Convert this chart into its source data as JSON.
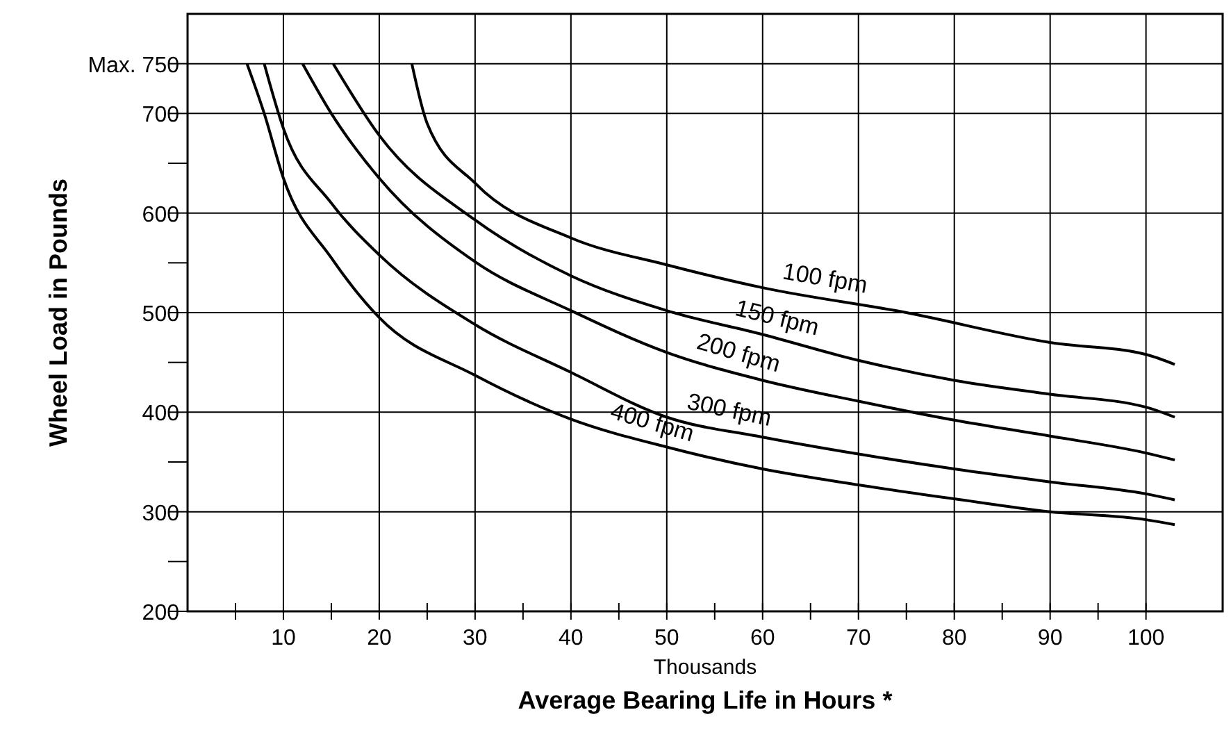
{
  "chart_data": {
    "type": "line",
    "xlabel": "Average Bearing Life in Hours *",
    "ylabel": "Wheel Load in Pounds",
    "annotations": [
      "Thousands"
    ],
    "xlim": [
      0,
      108
    ],
    "ylim": [
      200,
      800
    ],
    "xticks": [
      {
        "value": 5,
        "label": null
      },
      10,
      {
        "value": 15,
        "label": null
      },
      20,
      {
        "value": 25,
        "label": null
      },
      30,
      {
        "value": 35,
        "label": null
      },
      40,
      {
        "value": 45,
        "label": null
      },
      50,
      {
        "value": 55,
        "label": null
      },
      60,
      {
        "value": 65,
        "label": null
      },
      70,
      {
        "value": 75,
        "label": null
      },
      80,
      {
        "value": 85,
        "label": null
      },
      90,
      {
        "value": 95,
        "label": null
      },
      100
    ],
    "yticks": [
      200,
      {
        "value": 250,
        "label": null
      },
      300,
      {
        "value": 350,
        "label": null
      },
      400,
      {
        "value": 450,
        "label": null
      },
      500,
      {
        "value": 550,
        "label": null
      },
      600,
      {
        "value": 650,
        "label": null
      },
      700,
      {
        "value": 750,
        "label": "Max. 750"
      }
    ],
    "grid": true,
    "marker": "none",
    "line_style": "solid",
    "series": [
      {
        "name": "100 fpm",
        "color": "#000000",
        "x": [
          23.4,
          25,
          30,
          40,
          50,
          60,
          75,
          90,
          100,
          103
        ],
        "values": [
          750,
          690,
          630,
          575,
          548,
          525,
          500,
          470,
          458,
          448
        ]
      },
      {
        "name": "150 fpm",
        "color": "#000000",
        "x": [
          15.2,
          20,
          30,
          40,
          50,
          60,
          70,
          80,
          90,
          100,
          103
        ],
        "values": [
          750,
          678,
          593,
          537,
          502,
          478,
          452,
          432,
          418,
          405,
          395
        ]
      },
      {
        "name": "200 fpm",
        "color": "#000000",
        "x": [
          12,
          15,
          20,
          30,
          40,
          50,
          60,
          70,
          80,
          90,
          100,
          103
        ],
        "values": [
          750,
          700,
          635,
          551,
          502,
          460,
          432,
          411,
          392,
          376,
          359,
          352
        ]
      },
      {
        "name": "300 fpm",
        "color": "#000000",
        "x": [
          8,
          10,
          15,
          20,
          30,
          40,
          50,
          60,
          70,
          80,
          90,
          100,
          103
        ],
        "values": [
          750,
          685,
          610,
          558,
          488,
          440,
          395,
          375,
          358,
          343,
          330,
          318,
          312
        ]
      },
      {
        "name": "400 fpm",
        "color": "#000000",
        "x": [
          6.2,
          8,
          10,
          15,
          20,
          30,
          40,
          50,
          60,
          70,
          80,
          90,
          100,
          103
        ],
        "values": [
          750,
          700,
          635,
          555,
          495,
          437,
          393,
          365,
          343,
          327,
          313,
          300,
          292,
          287
        ]
      }
    ]
  }
}
